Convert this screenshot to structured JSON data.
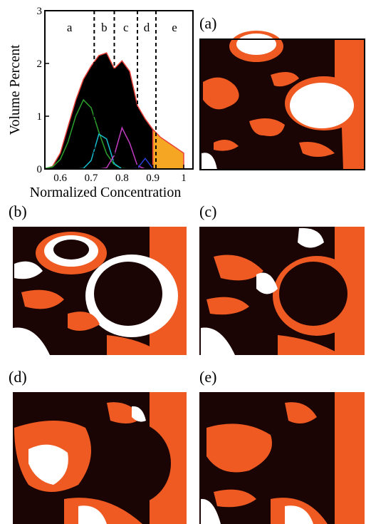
{
  "chart_data": {
    "type": "area",
    "xlabel": "Normalized Concentration",
    "ylabel": "Volume Percent",
    "x": [
      0.55,
      0.575,
      0.6,
      0.625,
      0.65,
      0.675,
      0.7,
      0.725,
      0.75,
      0.775,
      0.8,
      0.825,
      0.85,
      0.875,
      0.9,
      0.925,
      0.95,
      0.975,
      1.0
    ],
    "series": [
      {
        "style": "area",
        "color": "#000000",
        "stroke": "#e8413a",
        "values": [
          0,
          0.05,
          0.3,
          0.8,
          1.3,
          1.7,
          1.95,
          2.15,
          2.2,
          1.9,
          2.05,
          1.85,
          1.2,
          0.95,
          0.75,
          null,
          null,
          null,
          null
        ]
      },
      {
        "style": "area",
        "color": "#f5a623",
        "stroke": "#e8413a",
        "values": [
          null,
          null,
          null,
          null,
          null,
          null,
          null,
          null,
          null,
          null,
          null,
          null,
          null,
          null,
          0.75,
          0.6,
          0.5,
          0.4,
          0.3
        ]
      },
      {
        "style": "line",
        "color": "#2ca02c",
        "values": [
          0.01,
          0.04,
          0.18,
          0.51,
          1.0,
          1.31,
          1.16,
          0.7,
          0.29,
          0.08,
          0.01,
          0,
          0,
          0,
          0,
          0,
          0,
          0,
          0
        ]
      },
      {
        "style": "line",
        "color": "#17becf",
        "values": [
          0,
          0,
          0,
          0,
          0,
          0.01,
          0.16,
          0.66,
          0.57,
          0.1,
          0,
          0,
          0,
          0,
          0,
          0,
          0,
          0,
          0
        ]
      },
      {
        "style": "line",
        "color": "#c13cc1",
        "values": [
          0,
          0,
          0,
          0,
          0,
          0,
          0,
          0,
          0.02,
          0.26,
          0.78,
          0.49,
          0.06,
          0,
          0,
          0,
          0,
          0,
          0
        ]
      },
      {
        "style": "line",
        "color": "#2b3fd6",
        "values": [
          0,
          0,
          0,
          0,
          0,
          0,
          0,
          0,
          0,
          0,
          0,
          0,
          0.01,
          0.2,
          0.01,
          0,
          0,
          0,
          0
        ]
      }
    ],
    "regions": [
      "a",
      "b",
      "c",
      "d",
      "e"
    ],
    "boundaries": [
      0.71,
      0.775,
      0.85,
      0.91
    ],
    "xlim": [
      0.55,
      1.03
    ],
    "xticks": [
      0.6,
      0.7,
      0.8,
      0.9,
      1
    ],
    "ylim": [
      0,
      3
    ],
    "yticks": [
      0,
      1,
      2,
      3
    ]
  },
  "panels": [
    "(a)",
    "(b)",
    "(c)",
    "(d)",
    "(e)"
  ]
}
